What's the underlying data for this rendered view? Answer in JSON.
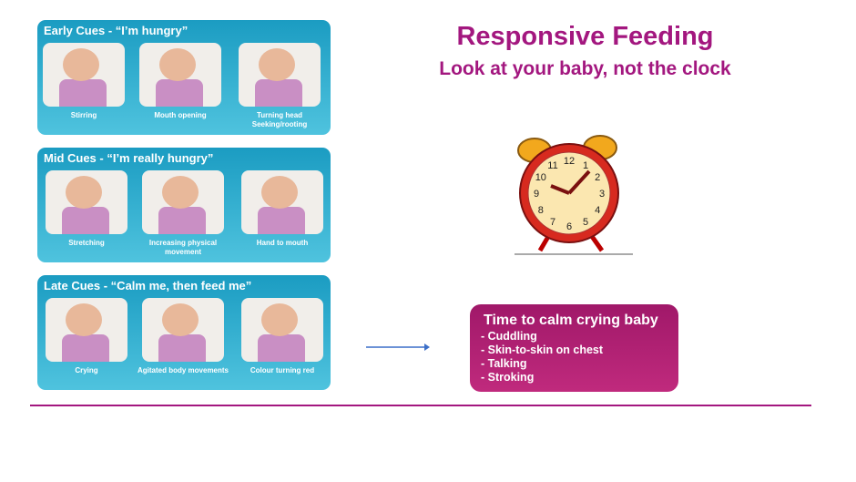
{
  "panels": [
    {
      "title": "Early Cues - “I’m hungry”",
      "captions": [
        "Stirring",
        "Mouth opening",
        "Turning head Seeking/rooting"
      ]
    },
    {
      "title": "Mid Cues - “I’m really hungry”",
      "captions": [
        "Stretching",
        "Increasing physical movement",
        "Hand to mouth"
      ]
    },
    {
      "title": "Late Cues - “Calm me, then feed me”",
      "captions": [
        "Crying",
        "Agitated body movements",
        "Colour turning red"
      ]
    }
  ],
  "heading": "Responsive Feeding",
  "subheading": "Look at your baby, not the clock",
  "calm": {
    "title": "Time to calm crying baby",
    "items": [
      "- Cuddling",
      "- Skin-to-skin on chest",
      "- Talking",
      "- Stroking"
    ]
  },
  "clock_numbers": [
    "12",
    "1",
    "2",
    "3",
    "4",
    "5",
    "6",
    "7",
    "8",
    "9",
    "10",
    "11"
  ],
  "colors": {
    "accent": "#a3177f",
    "panel": "#1b9cc2"
  }
}
